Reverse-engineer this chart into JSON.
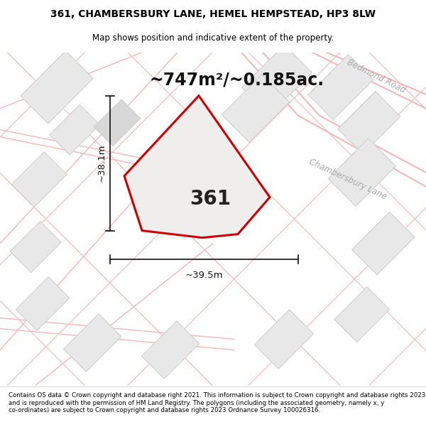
{
  "title_line1": "361, CHAMBERSBURY LANE, HEMEL HEMPSTEAD, HP3 8LW",
  "title_line2": "Map shows position and indicative extent of the property.",
  "area_text": "~747m²/~0.185ac.",
  "plot_label": "361",
  "dim_width": "~39.5m",
  "dim_height": "~38.1m",
  "footer_text": "Contains OS data © Crown copyright and database right 2021. This information is subject to Crown copyright and database rights 2023 and is reproduced with the permission of HM Land Registry. The polygons (including the associated geometry, namely x, y co-ordinates) are subject to Crown copyright and database rights 2023 Ordnance Survey 100026316.",
  "map_bg": "#ffffff",
  "plot_fill": "#f0eeec",
  "plot_edge": "#cc0000",
  "dim_color": "#111111",
  "road_line_color": "#f4b8b8",
  "road_label_color": "#aaaaaa",
  "building_fill": "#e8e8e8",
  "building_edge": "#cccccc",
  "title_fontsize": 10,
  "subtitle_fontsize": 8.5,
  "area_fontsize": 17,
  "label_fontsize": 20,
  "dim_fontsize": 9.5,
  "road_label_fontsize": 8.5,
  "footer_fontsize": 6.2
}
